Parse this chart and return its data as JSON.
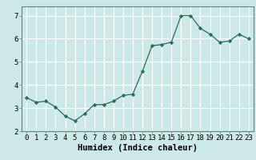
{
  "x": [
    0,
    1,
    2,
    3,
    4,
    5,
    6,
    7,
    8,
    9,
    10,
    11,
    12,
    13,
    14,
    15,
    16,
    17,
    18,
    19,
    20,
    21,
    22,
    23
  ],
  "y": [
    3.45,
    3.25,
    3.3,
    3.05,
    2.65,
    2.45,
    2.75,
    3.15,
    3.15,
    3.3,
    3.55,
    3.6,
    4.6,
    5.7,
    5.75,
    5.85,
    7.0,
    7.0,
    6.45,
    6.2,
    5.85,
    5.9,
    6.2,
    6.0
  ],
  "line_color": "#2d6b5e",
  "marker": "D",
  "marker_size": 2.2,
  "bg_color": "#cce8e8",
  "grid_color": "#ffffff",
  "xlabel": "Humidex (Indice chaleur)",
  "xlim": [
    -0.5,
    23.5
  ],
  "ylim": [
    2.0,
    7.4
  ],
  "yticks": [
    2,
    3,
    4,
    5,
    6,
    7
  ],
  "xticks": [
    0,
    1,
    2,
    3,
    4,
    5,
    6,
    7,
    8,
    9,
    10,
    11,
    12,
    13,
    14,
    15,
    16,
    17,
    18,
    19,
    20,
    21,
    22,
    23
  ],
  "xtick_labels": [
    "0",
    "1",
    "2",
    "3",
    "4",
    "5",
    "6",
    "7",
    "8",
    "9",
    "10",
    "11",
    "12",
    "13",
    "14",
    "15",
    "16",
    "17",
    "18",
    "19",
    "20",
    "21",
    "22",
    "23"
  ],
  "xlabel_fontsize": 7.5,
  "tick_fontsize": 6.5
}
